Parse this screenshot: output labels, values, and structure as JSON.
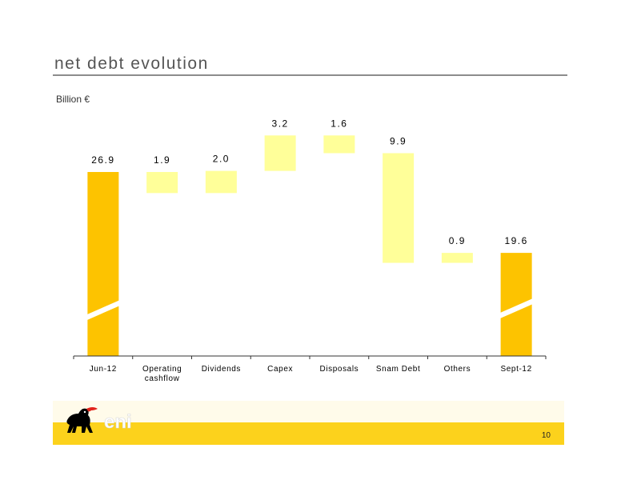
{
  "page": {
    "title": "net debt evolution",
    "unit": "Billion €",
    "page_number": "10",
    "logo_text": "eni"
  },
  "colors": {
    "total_bar": "#fdc300",
    "step_bar": "#ffff99",
    "footer": "#fcd21c",
    "title": "#555555"
  },
  "chart_data": {
    "type": "bar",
    "subtype": "waterfall",
    "title": "",
    "xlabel": "",
    "ylabel": "Billion €",
    "categories": [
      [
        "Jun-12"
      ],
      [
        "Operating",
        "cashflow"
      ],
      [
        "Dividends"
      ],
      [
        "Capex"
      ],
      [
        "Disposals"
      ],
      [
        "Snam Debt"
      ],
      [
        "Others"
      ],
      [
        "Sept-12"
      ]
    ],
    "values": [
      26.9,
      -1.9,
      2.0,
      3.2,
      -1.6,
      -9.9,
      0.9,
      19.6
    ],
    "labels": [
      "26.9",
      "1.9",
      "2.0",
      "3.2",
      "1.6",
      "9.9",
      "0.9",
      "19.6"
    ],
    "kinds": [
      "total",
      "step",
      "step",
      "step",
      "step",
      "step",
      "step",
      "total"
    ],
    "axis_break": true,
    "grid": false,
    "legend": "none"
  }
}
